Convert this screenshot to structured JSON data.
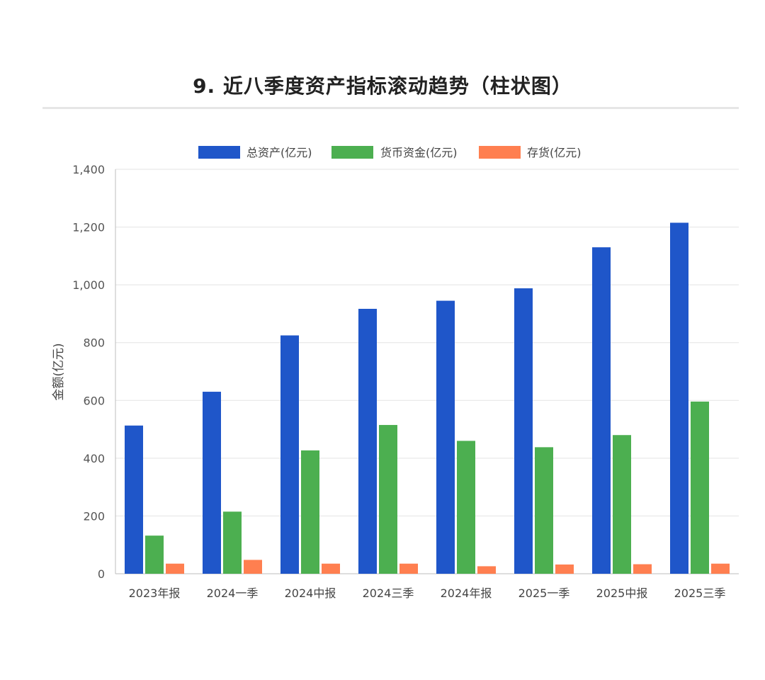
{
  "page": {
    "title": "9. 近八季度资产指标滚动趋势（柱状图）"
  },
  "chart_data": {
    "type": "bar",
    "categories": [
      "2023年报",
      "2024一季",
      "2024中报",
      "2024三季",
      "2024年报",
      "2025一季",
      "2025中报",
      "2025三季"
    ],
    "series": [
      {
        "name": "总资产(亿元)",
        "color": "#1f56c9",
        "values": [
          513,
          630,
          825,
          917,
          945,
          988,
          1130,
          1215
        ]
      },
      {
        "name": "货币资金(亿元)",
        "color": "#4caf50",
        "values": [
          132,
          215,
          427,
          515,
          460,
          438,
          480,
          596
        ]
      },
      {
        "name": "存货(亿元)",
        "color": "#ff7f50",
        "values": [
          35,
          48,
          35,
          35,
          26,
          32,
          33,
          35
        ]
      }
    ],
    "ylabel": "金额(亿元)",
    "ylim": [
      0,
      1400
    ],
    "yticks": [
      0,
      200,
      400,
      600,
      800,
      1000,
      1200,
      1400
    ],
    "ytick_labels": [
      "0",
      "200",
      "400",
      "600",
      "800",
      "1,000",
      "1,200",
      "1,400"
    ],
    "grid": true,
    "legend_position": "top"
  }
}
